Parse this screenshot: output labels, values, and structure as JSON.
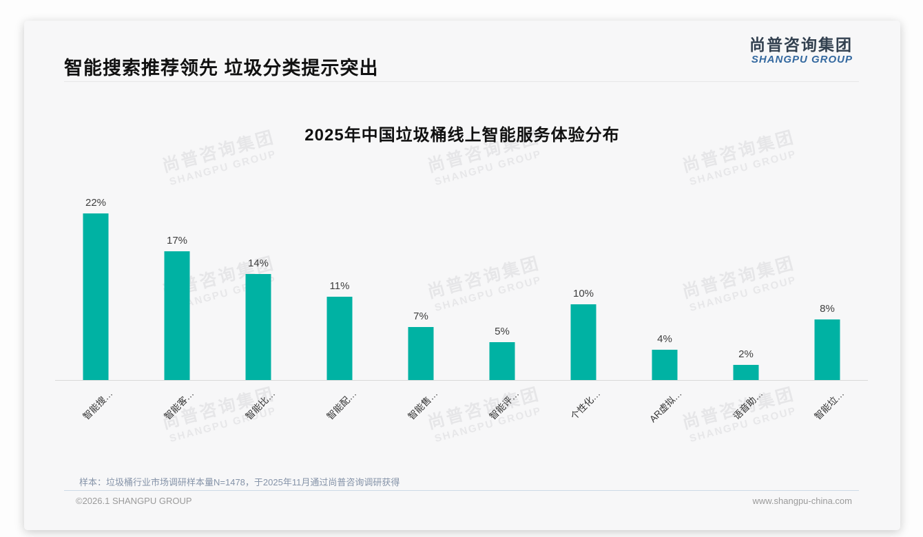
{
  "header": {
    "title": "智能搜索推荐领先 垃圾分类提示突出",
    "logo_cn": "尚普咨询集团",
    "logo_en": "SHANGPU GROUP"
  },
  "chart_data": {
    "type": "bar",
    "title": "2025年中国垃圾桶线上智能服务体验分布",
    "categories": [
      "智能搜…",
      "智能客…",
      "智能比…",
      "智能配…",
      "智能售…",
      "智能评…",
      "个性化…",
      "AR虚拟…",
      "语音助…",
      "智能垃…"
    ],
    "values": [
      22,
      17,
      14,
      11,
      7,
      5,
      10,
      4,
      2,
      8
    ],
    "value_labels": [
      "22%",
      "17%",
      "14%",
      "11%",
      "7%",
      "5%",
      "10%",
      "4%",
      "2%",
      "8%"
    ],
    "unit": "%",
    "xlabel": "",
    "ylabel": "",
    "ylim": [
      0,
      24
    ],
    "grid": false,
    "legend_position": "none",
    "bar_color": "#00b2a3",
    "x_tick_rotation": 45
  },
  "watermark": {
    "line1": "尚普咨询集团",
    "line2": "SHANGPU GROUP"
  },
  "footer": {
    "note": "样本：垃圾桶行业市场调研样本量N=1478，于2025年11月通过尚普咨询调研获得",
    "copyright": "©2026.1 SHANGPU GROUP",
    "website": "www.shangpu-china.com"
  }
}
